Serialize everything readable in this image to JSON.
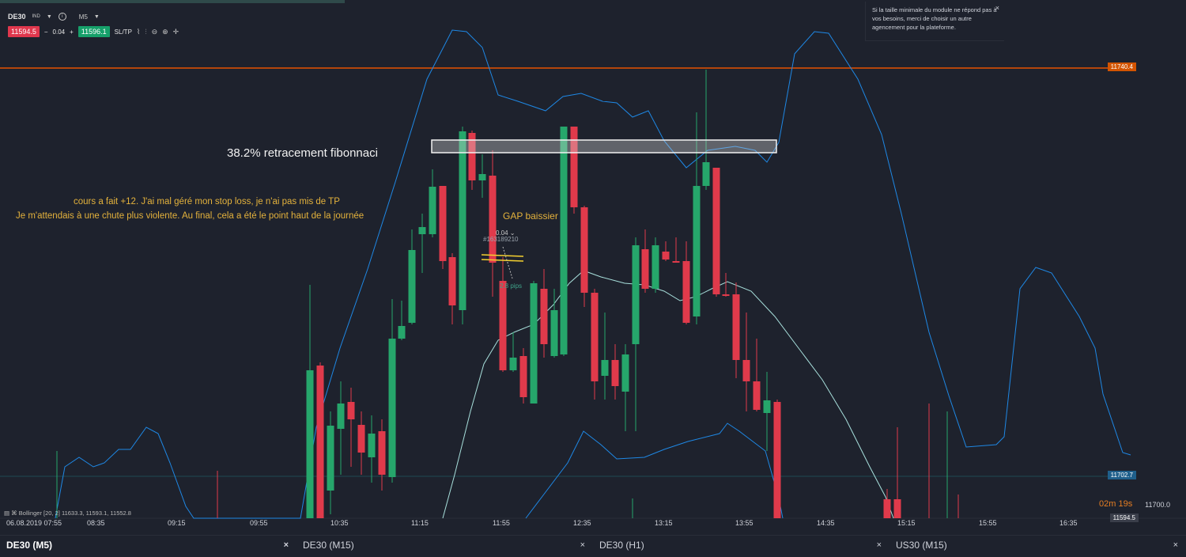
{
  "toolbar": {
    "symbol": "DE30",
    "symbol_suffix": "IND",
    "timeframe": "M5",
    "sell_price": "11594.5",
    "spread": "0.04",
    "buy_price": "11596.1",
    "sltp_label": "SL/TP"
  },
  "notice": {
    "text": "Si la taille minimale du module ne répond pas à vos besoins, merci de choisir un autre agencement pour la plateforme."
  },
  "chart": {
    "price_label_top": "11740.4",
    "price_label_blue": "11702.7",
    "price_label_axis": "11700.0",
    "price_label_current": "11594.5",
    "timer_min": "02m",
    "timer_sec": "19s",
    "bollinger_label": "Bollinger [20, 2] 11633.3, 11593.1, 11552.8",
    "fib_label": "38.2% retracement fibonnaci",
    "annotation_line1": "cours a fait +12. J'ai mal géré mon stop loss, je n'ai pas mis de TP",
    "annotation_line2": "Je m'attendais à une chute plus violente. Au final, cela a été le point haut de la journée",
    "gap_label": "GAP baissier",
    "trade_label": "#163189210",
    "trade_size": "0.04",
    "trade_pips": "2.8 pips",
    "x_axis_labels": [
      "06.08.2019 07:55",
      "08:35",
      "09:15",
      "09:55",
      "10:35",
      "11:15",
      "11:55",
      "12:35",
      "13:15",
      "13:55",
      "14:35",
      "15:15",
      "15:55",
      "16:35"
    ],
    "colors": {
      "bull": "#26a66b",
      "bear": "#e03a4b",
      "band": "#1e88e5",
      "mid": "#a8e0dc",
      "level": "#e65100"
    }
  },
  "tabs": [
    {
      "label": "DE30 (M5)"
    },
    {
      "label": "DE30 (M15)"
    },
    {
      "label": "DE30 (H1)"
    },
    {
      "label": "US30 (M15)"
    }
  ]
}
